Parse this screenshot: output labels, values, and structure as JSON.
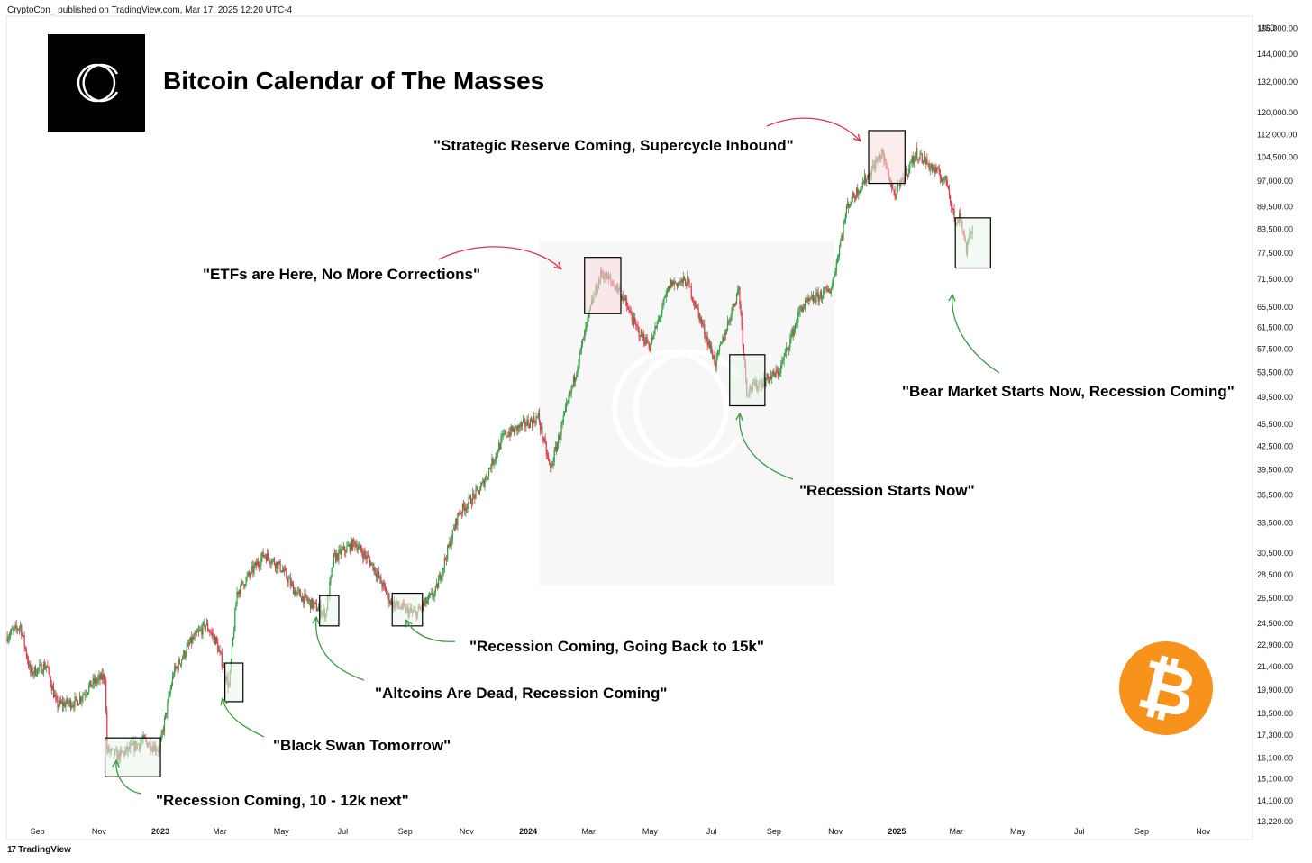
{
  "header": {
    "publisher": "CryptoCon_ published on TradingView.com, Mar 17, 2025 12:20 UTC-4",
    "footer": "TradingView"
  },
  "chart_data": {
    "type": "candlestick",
    "title": "Bitcoin Calendar of The Masses",
    "currency": "USD",
    "yscale": "log",
    "ylim": [
      12500,
      162000
    ],
    "y_ticks": [
      156000,
      144000,
      132000,
      120000,
      112000,
      104500,
      97000,
      89500,
      83500,
      77500,
      71500,
      65500,
      61500,
      57500,
      53500,
      49500,
      45500,
      42500,
      39500,
      36500,
      33500,
      30500,
      28500,
      26500,
      24500,
      22900,
      21400,
      19900,
      18500,
      17300,
      16100,
      15100,
      14100,
      13220
    ],
    "y_tick_labels": [
      "156,000.00",
      "144,000.00",
      "132,000.00",
      "120,000.00",
      "112,000.00",
      "104,500.00",
      "97,000.00",
      "89,500.00",
      "83,500.00",
      "77,500.00",
      "71,500.00",
      "65,500.00",
      "61,500.00",
      "57,500.00",
      "53,500.00",
      "49,500.00",
      "45,500.00",
      "42,500.00",
      "39,500.00",
      "36,500.00",
      "33,500.00",
      "30,500.00",
      "28,500.00",
      "26,500.00",
      "24,500.00",
      "22,900.00",
      "21,400.00",
      "19,900.00",
      "18,500.00",
      "17,300.00",
      "16,100.00",
      "15,100.00",
      "14,100.00",
      "13,220.00"
    ],
    "x_ticks": [
      {
        "label": "Sep",
        "date": "2022-09-01",
        "bold": false
      },
      {
        "label": "Nov",
        "date": "2022-11-01",
        "bold": false
      },
      {
        "label": "2023",
        "date": "2023-01-01",
        "bold": true
      },
      {
        "label": "Mar",
        "date": "2023-03-01",
        "bold": false
      },
      {
        "label": "May",
        "date": "2023-05-01",
        "bold": false
      },
      {
        "label": "Jul",
        "date": "2023-07-01",
        "bold": false
      },
      {
        "label": "Sep",
        "date": "2023-09-01",
        "bold": false
      },
      {
        "label": "Nov",
        "date": "2023-11-01",
        "bold": false
      },
      {
        "label": "2024",
        "date": "2024-01-01",
        "bold": true
      },
      {
        "label": "Mar",
        "date": "2024-03-01",
        "bold": false
      },
      {
        "label": "May",
        "date": "2024-05-01",
        "bold": false
      },
      {
        "label": "Jul",
        "date": "2024-07-01",
        "bold": false
      },
      {
        "label": "Sep",
        "date": "2024-09-01",
        "bold": false
      },
      {
        "label": "Nov",
        "date": "2024-11-01",
        "bold": false
      },
      {
        "label": "2025",
        "date": "2025-01-01",
        "bold": true
      },
      {
        "label": "Mar",
        "date": "2025-03-01",
        "bold": false
      },
      {
        "label": "May",
        "date": "2025-05-01",
        "bold": false
      },
      {
        "label": "Jul",
        "date": "2025-07-01",
        "bold": false
      },
      {
        "label": "Sep",
        "date": "2025-09-01",
        "bold": false
      },
      {
        "label": "Nov",
        "date": "2025-11-01",
        "bold": false
      }
    ],
    "price_path": [
      [
        "2022-08-01",
        23500
      ],
      [
        "2022-08-15",
        24300
      ],
      [
        "2022-08-25",
        21000
      ],
      [
        "2022-09-10",
        21500
      ],
      [
        "2022-09-20",
        19000
      ],
      [
        "2022-10-10",
        19200
      ],
      [
        "2022-10-25",
        20300
      ],
      [
        "2022-11-07",
        20800
      ],
      [
        "2022-11-09",
        16500
      ],
      [
        "2022-11-20",
        16200
      ],
      [
        "2022-12-15",
        17000
      ],
      [
        "2022-12-31",
        16550
      ],
      [
        "2023-01-14",
        21000
      ],
      [
        "2023-01-31",
        23100
      ],
      [
        "2023-02-15",
        24400
      ],
      [
        "2023-02-25",
        23200
      ],
      [
        "2023-03-10",
        20100
      ],
      [
        "2023-03-18",
        27000
      ],
      [
        "2023-04-14",
        30400
      ],
      [
        "2023-04-30",
        29200
      ],
      [
        "2023-05-15",
        27000
      ],
      [
        "2023-06-14",
        25200
      ],
      [
        "2023-06-22",
        30000
      ],
      [
        "2023-07-13",
        31500
      ],
      [
        "2023-07-31",
        29300
      ],
      [
        "2023-08-18",
        26100
      ],
      [
        "2023-09-11",
        25200
      ],
      [
        "2023-10-01",
        27000
      ],
      [
        "2023-10-24",
        34500
      ],
      [
        "2023-11-15",
        37300
      ],
      [
        "2023-12-08",
        44000
      ],
      [
        "2024-01-11",
        46500
      ],
      [
        "2024-01-23",
        39500
      ],
      [
        "2024-02-15",
        52000
      ],
      [
        "2024-03-05",
        67000
      ],
      [
        "2024-03-14",
        73000
      ],
      [
        "2024-04-01",
        69000
      ],
      [
        "2024-04-17",
        61500
      ],
      [
        "2024-05-01",
        58000
      ],
      [
        "2024-05-21",
        70500
      ],
      [
        "2024-06-07",
        71000
      ],
      [
        "2024-07-05",
        55000
      ],
      [
        "2024-07-28",
        69500
      ],
      [
        "2024-08-05",
        50500
      ],
      [
        "2024-09-06",
        53500
      ],
      [
        "2024-09-28",
        65500
      ],
      [
        "2024-10-28",
        69500
      ],
      [
        "2024-11-13",
        90000
      ],
      [
        "2024-12-05",
        99500
      ],
      [
        "2024-12-17",
        106000
      ],
      [
        "2024-12-30",
        92500
      ],
      [
        "2025-01-20",
        106000
      ],
      [
        "2025-02-20",
        96500
      ],
      [
        "2025-03-01",
        84000
      ],
      [
        "2025-03-04",
        88000
      ],
      [
        "2025-03-11",
        78500
      ],
      [
        "2025-03-17",
        84000
      ]
    ],
    "watermark_region": {
      "x_from": "2024-01-12",
      "x_to": "2024-10-31",
      "y_from": 27600,
      "y_to": 80500
    },
    "event_boxes": [
      {
        "type": "bear",
        "x_from": "2024-02-26",
        "x_to": "2024-04-02",
        "y_from": 64200,
        "y_to": 76500
      },
      {
        "type": "bear",
        "x_from": "2024-12-04",
        "x_to": "2025-01-09",
        "y_from": 96300,
        "y_to": 113500
      },
      {
        "type": "bull",
        "x_from": "2022-11-07",
        "x_to": "2023-01-01",
        "y_from": 15200,
        "y_to": 17150
      },
      {
        "type": "bull",
        "x_from": "2023-03-06",
        "x_to": "2023-03-24",
        "y_from": 19200,
        "y_to": 21650
      },
      {
        "type": "bull",
        "x_from": "2023-06-08",
        "x_to": "2023-06-27",
        "y_from": 24300,
        "y_to": 26700
      },
      {
        "type": "bull",
        "x_from": "2023-08-19",
        "x_to": "2023-09-18",
        "y_from": 24300,
        "y_to": 26900
      },
      {
        "type": "bull",
        "x_from": "2024-07-19",
        "x_to": "2024-08-23",
        "y_from": 48200,
        "y_to": 56500
      },
      {
        "type": "bull",
        "x_from": "2025-02-28",
        "x_to": "2025-04-04",
        "y_from": 74000,
        "y_to": 86500
      }
    ],
    "up_color": "#2e9e41",
    "down_color": "#e0344a",
    "bull_box_fill": "#e8f5e9",
    "bear_box_fill": "#fbdde0",
    "bull_arrow_color": "#3d9a45",
    "bear_arrow_color": "#e0344a",
    "bitcoin_badge": {
      "symbol": "₿",
      "color": "#f7931a"
    },
    "annotations": [
      {
        "id": "recession-10-12k",
        "text": "\"Recession Coming, 10 - 12k next\"",
        "arrow": "bull"
      },
      {
        "id": "black-swan",
        "text": "\"Black Swan Tomorrow\"",
        "arrow": "bull"
      },
      {
        "id": "altcoins-dead",
        "text": "\"Altcoins Are Dead, Recession Coming\"",
        "arrow": "bull"
      },
      {
        "id": "back-to-15k",
        "text": "\"Recession Coming, Going Back to 15k\"",
        "arrow": "bull"
      },
      {
        "id": "etfs-here",
        "text": "\"ETFs are Here, No More Corrections\"",
        "arrow": "bear"
      },
      {
        "id": "recession-starts",
        "text": "\"Recession Starts Now\"",
        "arrow": "bull"
      },
      {
        "id": "strategic-reserve",
        "text": "\"Strategic Reserve Coming, Supercycle Inbound\"",
        "arrow": "bear"
      },
      {
        "id": "bear-market",
        "text": "\"Bear Market Starts Now, Recession Coming\"",
        "arrow": "bull"
      }
    ]
  }
}
